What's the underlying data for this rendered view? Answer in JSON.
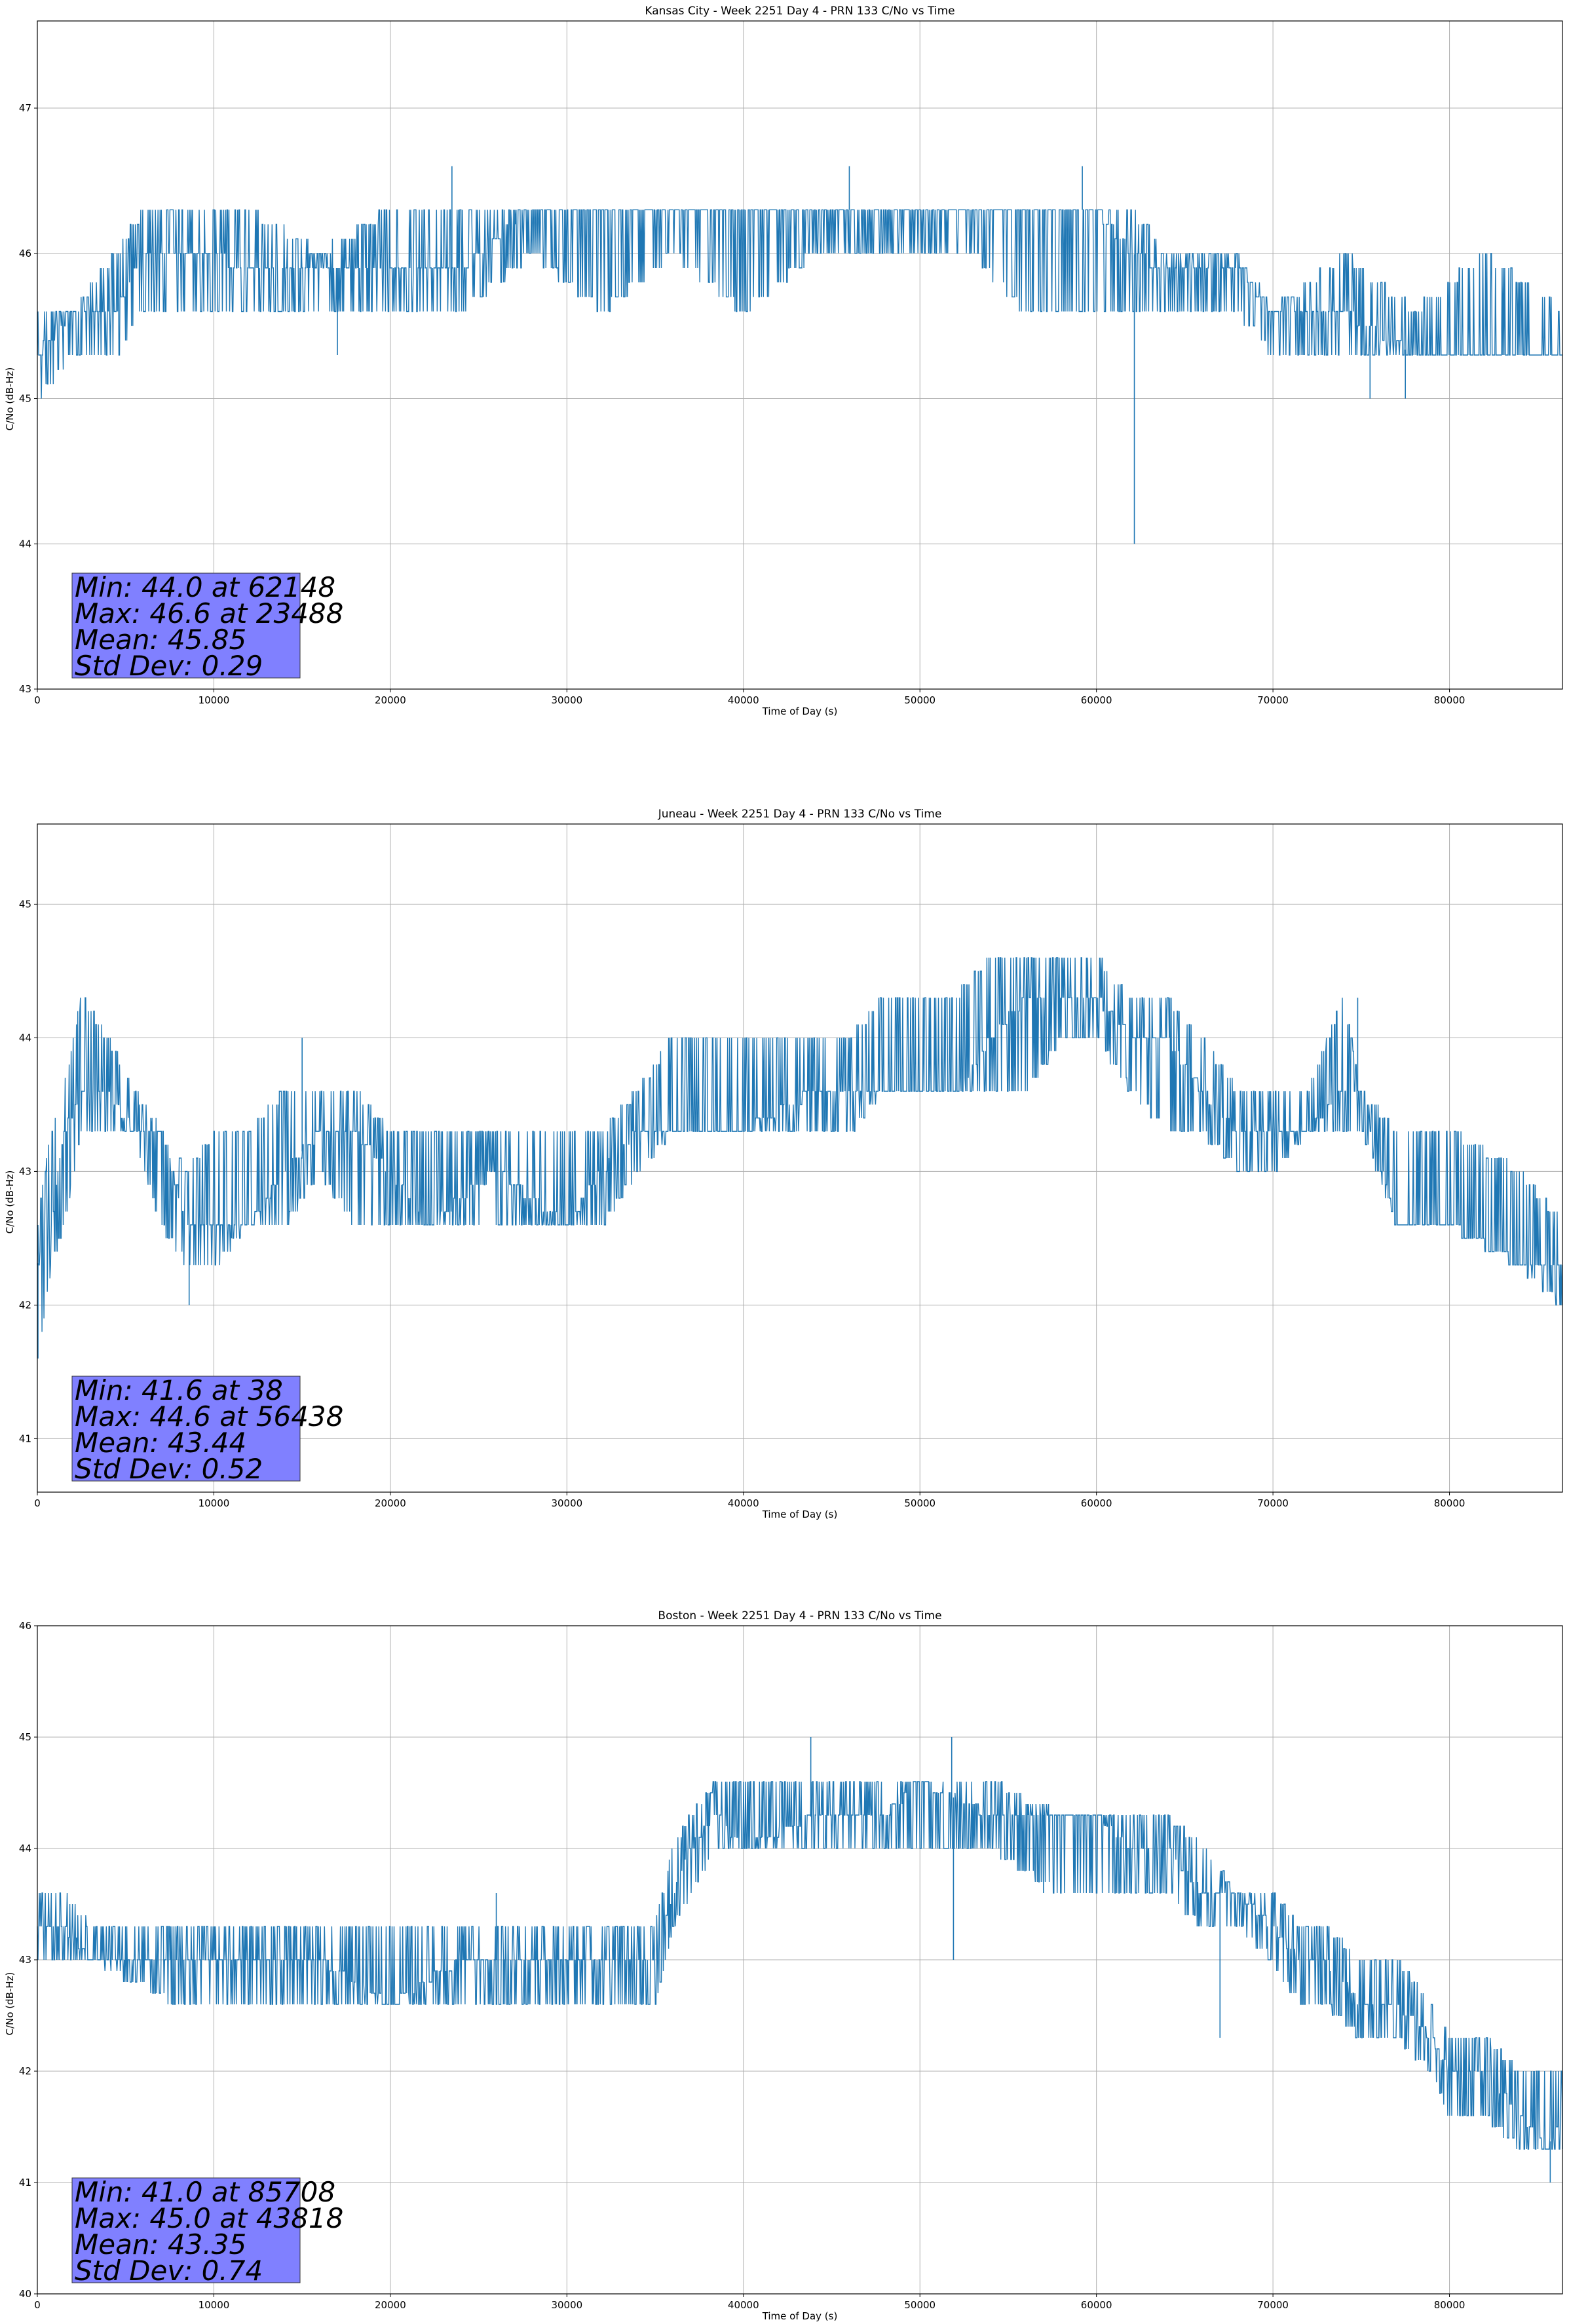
{
  "charts": [
    {
      "title": "Kansas City - Week 2251 Day 4 - PRN 133 C/No vs Time",
      "xlabel": "Time of Day (s)",
      "ylabel": "C/No (dB-Hz)",
      "stats": [
        "Min: 44.0 at 62148",
        "Max: 46.6 at 23488",
        "Mean: 45.85",
        "Std Dev: 0.29"
      ]
    },
    {
      "title": "Juneau - Week 2251 Day 4 - PRN 133 C/No vs Time",
      "xlabel": "Time of Day (s)",
      "ylabel": "C/No (dB-Hz)",
      "stats": [
        "Min: 41.6 at 38",
        "Max: 44.6 at 56438",
        "Mean: 43.44",
        "Std Dev: 0.52"
      ]
    },
    {
      "title": "Boston - Week 2251 Day 4 - PRN 133 C/No vs Time",
      "xlabel": "Time of Day (s)",
      "ylabel": "C/No (dB-Hz)",
      "stats": [
        "Min: 41.0 at 85708",
        "Max: 45.0 at 43818",
        "Mean: 43.35",
        "Std Dev: 0.74"
      ]
    }
  ],
  "colors": {
    "line": "#1f77b4",
    "statbox": "#8080ff",
    "grid": "#b0b0b0"
  },
  "chart_data": [
    {
      "type": "line",
      "title": "Kansas City - Week 2251 Day 4 - PRN 133 C/No vs Time",
      "xlabel": "Time of Day (s)",
      "ylabel": "C/No (dB-Hz)",
      "xlim": [
        0,
        86400
      ],
      "ylim": [
        43,
        47.6
      ],
      "xticks": [
        0,
        10000,
        20000,
        30000,
        40000,
        50000,
        60000,
        70000,
        80000
      ],
      "yticks": [
        43,
        44,
        45,
        46,
        47
      ],
      "grid": true,
      "series": [
        {
          "x": [
            0,
            2000,
            4500,
            6000,
            9500,
            12000,
            16000,
            20000,
            24000,
            28000,
            32000,
            36000,
            40000,
            44000,
            48000,
            53000,
            56000,
            60000,
            62000,
            64000,
            68000,
            70000,
            74000,
            78000,
            82000,
            86400
          ],
          "base": [
            45.3,
            45.6,
            45.6,
            46.0,
            46.0,
            45.9,
            45.9,
            45.9,
            45.9,
            46.3,
            46.3,
            46.3,
            46.3,
            46.3,
            46.3,
            46.3,
            46.3,
            46.3,
            46.0,
            45.9,
            45.9,
            45.6,
            45.6,
            45.3,
            45.3,
            45.3
          ],
          "low": [
            45.0,
            45.3,
            45.3,
            45.6,
            45.6,
            45.6,
            45.6,
            45.6,
            45.6,
            46.0,
            45.6,
            46.0,
            45.6,
            46.0,
            46.0,
            46.0,
            45.6,
            45.6,
            45.6,
            45.6,
            45.6,
            45.3,
            45.3,
            45.3,
            45.3,
            45.3
          ],
          "high": [
            45.6,
            45.6,
            46.0,
            46.3,
            46.3,
            46.3,
            46.0,
            46.3,
            46.3,
            46.3,
            46.3,
            46.3,
            46.3,
            46.3,
            46.3,
            46.3,
            46.3,
            46.3,
            46.3,
            46.0,
            46.0,
            45.6,
            46.0,
            45.6,
            46.0,
            45.6
          ],
          "spikes": [
            [
              62148,
              44.0
            ],
            [
              23488,
              46.6
            ],
            [
              46000,
              46.6
            ],
            [
              59200,
              46.6
            ],
            [
              17000,
              45.3
            ],
            [
              77500,
              45.0
            ],
            [
              75500,
              45.0
            ]
          ]
        }
      ],
      "stats": [
        "Min: 44.0 at 62148",
        "Max: 46.6 at 23488",
        "Mean: 45.85",
        "Std Dev: 0.29"
      ]
    },
    {
      "type": "line",
      "title": "Juneau - Week 2251 Day 4 - PRN 133 C/No vs Time",
      "xlabel": "Time of Day (s)",
      "ylabel": "C/No (dB-Hz)",
      "xlim": [
        0,
        86400
      ],
      "ylim": [
        40.6,
        45.6
      ],
      "xticks": [
        0,
        10000,
        20000,
        30000,
        40000,
        50000,
        60000,
        70000,
        80000
      ],
      "yticks": [
        41,
        42,
        43,
        44,
        45
      ],
      "grid": true,
      "series": [
        {
          "x": [
            0,
            800,
            1500,
            2500,
            4000,
            5500,
            7000,
            8500,
            10000,
            12000,
            14000,
            16000,
            18000,
            20000,
            22000,
            26000,
            30000,
            32000,
            34000,
            36000,
            40000,
            44000,
            46000,
            48000,
            52000,
            54000,
            56000,
            58000,
            60000,
            62000,
            64000,
            66000,
            68000,
            70000,
            72000,
            74000,
            75000,
            77000,
            78000,
            80000,
            84000,
            86400
          ],
          "base": [
            42.3,
            42.6,
            43.3,
            43.6,
            43.6,
            43.3,
            43.3,
            42.6,
            42.6,
            42.6,
            43.0,
            43.3,
            43.3,
            43.0,
            42.6,
            43.0,
            42.6,
            43.0,
            43.3,
            43.3,
            43.3,
            43.6,
            43.6,
            43.6,
            43.6,
            44.0,
            44.3,
            44.3,
            44.3,
            44.0,
            44.0,
            43.6,
            43.3,
            43.3,
            43.3,
            43.6,
            43.6,
            42.6,
            42.6,
            42.6,
            42.3,
            42.3
          ],
          "low": [
            41.6,
            42.3,
            42.6,
            43.3,
            43.3,
            43.3,
            42.6,
            42.3,
            42.3,
            42.6,
            42.6,
            43.0,
            42.6,
            42.6,
            42.6,
            42.6,
            42.6,
            42.6,
            43.0,
            43.3,
            43.3,
            43.3,
            43.3,
            43.6,
            43.6,
            43.6,
            43.6,
            44.0,
            44.0,
            43.6,
            43.3,
            43.3,
            43.0,
            43.0,
            43.3,
            43.3,
            43.3,
            42.6,
            42.6,
            42.6,
            42.3,
            42.0
          ],
          "high": [
            42.6,
            43.3,
            43.6,
            44.3,
            44.0,
            43.6,
            43.3,
            43.0,
            43.3,
            43.3,
            43.6,
            43.6,
            43.6,
            43.3,
            43.3,
            43.3,
            43.3,
            43.3,
            43.6,
            44.0,
            44.0,
            44.0,
            44.0,
            44.3,
            44.3,
            44.6,
            44.6,
            44.6,
            44.6,
            44.3,
            44.3,
            44.0,
            43.6,
            43.6,
            43.6,
            44.3,
            43.6,
            43.3,
            43.3,
            43.3,
            43.0,
            42.6
          ],
          "spikes": [
            [
              38,
              41.6
            ],
            [
              8600,
              42.0
            ],
            [
              15000,
              44.0
            ],
            [
              86300,
              42.0
            ],
            [
              74800,
              44.3
            ]
          ]
        }
      ],
      "stats": [
        "Min: 41.6 at 38",
        "Max: 44.6 at 56438",
        "Mean: 43.44",
        "Std Dev: 0.52"
      ]
    },
    {
      "type": "line",
      "title": "Boston - Week 2251 Day 4 - PRN 133 C/No vs Time",
      "xlabel": "Time of Day (s)",
      "ylabel": "C/No (dB-Hz)",
      "xlim": [
        0,
        86400
      ],
      "ylim": [
        40,
        46
      ],
      "xticks": [
        0,
        10000,
        20000,
        30000,
        40000,
        50000,
        60000,
        70000,
        80000
      ],
      "yticks": [
        40,
        41,
        42,
        43,
        44,
        45,
        46
      ],
      "grid": true,
      "series": [
        {
          "x": [
            0,
            1500,
            3000,
            8000,
            12000,
            16000,
            20000,
            24000,
            28000,
            32000,
            35000,
            36000,
            37000,
            38500,
            40000,
            44000,
            48000,
            50000,
            54000,
            58000,
            60000,
            62000,
            64000,
            66000,
            68000,
            70000,
            71500,
            73000,
            75000,
            77000,
            79000,
            80000,
            82000,
            84000,
            85500,
            86400
          ],
          "base": [
            43.3,
            43.3,
            43.0,
            43.0,
            43.0,
            43.0,
            42.6,
            43.0,
            43.0,
            43.0,
            43.0,
            43.6,
            44.0,
            44.3,
            44.0,
            44.3,
            44.3,
            44.6,
            44.3,
            44.3,
            44.3,
            44.0,
            44.0,
            43.6,
            43.6,
            43.3,
            43.0,
            43.0,
            42.6,
            42.6,
            42.3,
            42.0,
            42.0,
            41.6,
            41.3,
            41.6
          ],
          "low": [
            43.0,
            43.0,
            43.0,
            42.6,
            42.6,
            42.6,
            42.6,
            42.6,
            42.6,
            42.6,
            42.6,
            43.3,
            43.6,
            44.0,
            44.0,
            44.0,
            44.0,
            44.0,
            44.0,
            43.6,
            43.6,
            43.6,
            43.6,
            43.3,
            43.3,
            43.0,
            42.6,
            42.6,
            42.3,
            42.3,
            42.0,
            41.6,
            41.6,
            41.3,
            41.3,
            41.3
          ],
          "high": [
            43.6,
            43.6,
            43.3,
            43.3,
            43.3,
            43.3,
            43.3,
            43.3,
            43.3,
            43.3,
            43.3,
            44.0,
            44.3,
            44.6,
            44.6,
            44.6,
            44.6,
            44.6,
            44.6,
            44.3,
            44.3,
            44.3,
            44.3,
            44.0,
            43.6,
            43.6,
            43.3,
            43.3,
            43.0,
            43.0,
            42.6,
            42.3,
            42.3,
            42.0,
            42.0,
            42.0
          ],
          "spikes": [
            [
              85708,
              41.0
            ],
            [
              43818,
              45.0
            ],
            [
              51800,
              45.0
            ],
            [
              51900,
              43.0
            ],
            [
              67000,
              42.3
            ],
            [
              57000,
              43.6
            ],
            [
              26000,
              43.6
            ],
            [
              26400,
              42.6
            ]
          ]
        }
      ],
      "stats": [
        "Min: 41.0 at 85708",
        "Max: 45.0 at 43818",
        "Mean: 43.35",
        "Std Dev: 0.74"
      ]
    }
  ]
}
